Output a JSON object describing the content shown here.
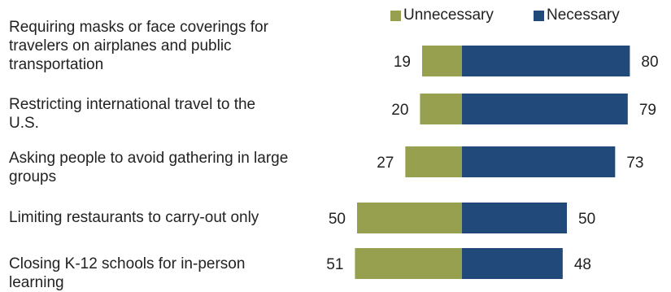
{
  "chart_data": {
    "type": "bar",
    "orientation": "horizontal-diverging",
    "categories": [
      "Requiring masks or face coverings for travelers on airplanes and public transportation",
      "Restricting international travel to the U.S.",
      "Asking people to avoid gathering in large groups",
      "Limiting restaurants to carry-out only",
      "Closing K-12 schools for in-person learning"
    ],
    "series": [
      {
        "name": "Unnecessary",
        "values": [
          19,
          20,
          27,
          50,
          51
        ],
        "color": "#97a04e",
        "direction": "left"
      },
      {
        "name": "Necessary",
        "values": [
          80,
          79,
          73,
          50,
          48
        ],
        "color": "#214a7b",
        "direction": "right"
      }
    ],
    "legend_position": "top-right",
    "grid": false
  }
}
